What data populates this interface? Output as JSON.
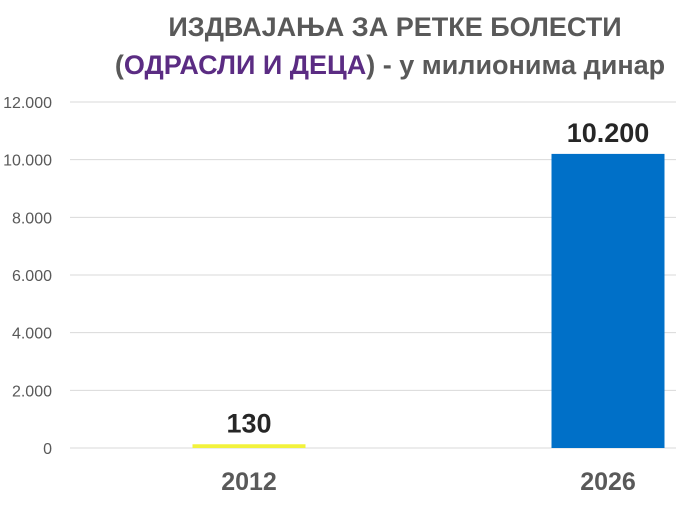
{
  "chart_data": {
    "type": "bar",
    "title_line1": "ИЗДВАЈАЊА ЗА РЕТКЕ БОЛЕСТИ",
    "title_line2": {
      "open": "(",
      "accent": "ОДРАСЛИ И ДЕЦА",
      "rest": ") - у милионима динар"
    },
    "categories": [
      "2012",
      "2026"
    ],
    "values": [
      130,
      10200
    ],
    "value_labels": [
      "130",
      "10.200"
    ],
    "bar_colors": [
      "#F2F23C",
      "#0070C8"
    ],
    "ylim": [
      0,
      12000
    ],
    "yticks": [
      0,
      2000,
      4000,
      6000,
      8000,
      10000,
      12000
    ],
    "ytick_labels": [
      "0",
      "2.000",
      "4.000",
      "6.000",
      "8.000",
      "10.000",
      "12.000"
    ],
    "grid": true,
    "legend": false,
    "colors": {
      "title": "#595959",
      "title_accent": "#5B2C83",
      "grid": "#D9D9D9",
      "axis_text": "#595959",
      "data_label": "#262626"
    }
  }
}
